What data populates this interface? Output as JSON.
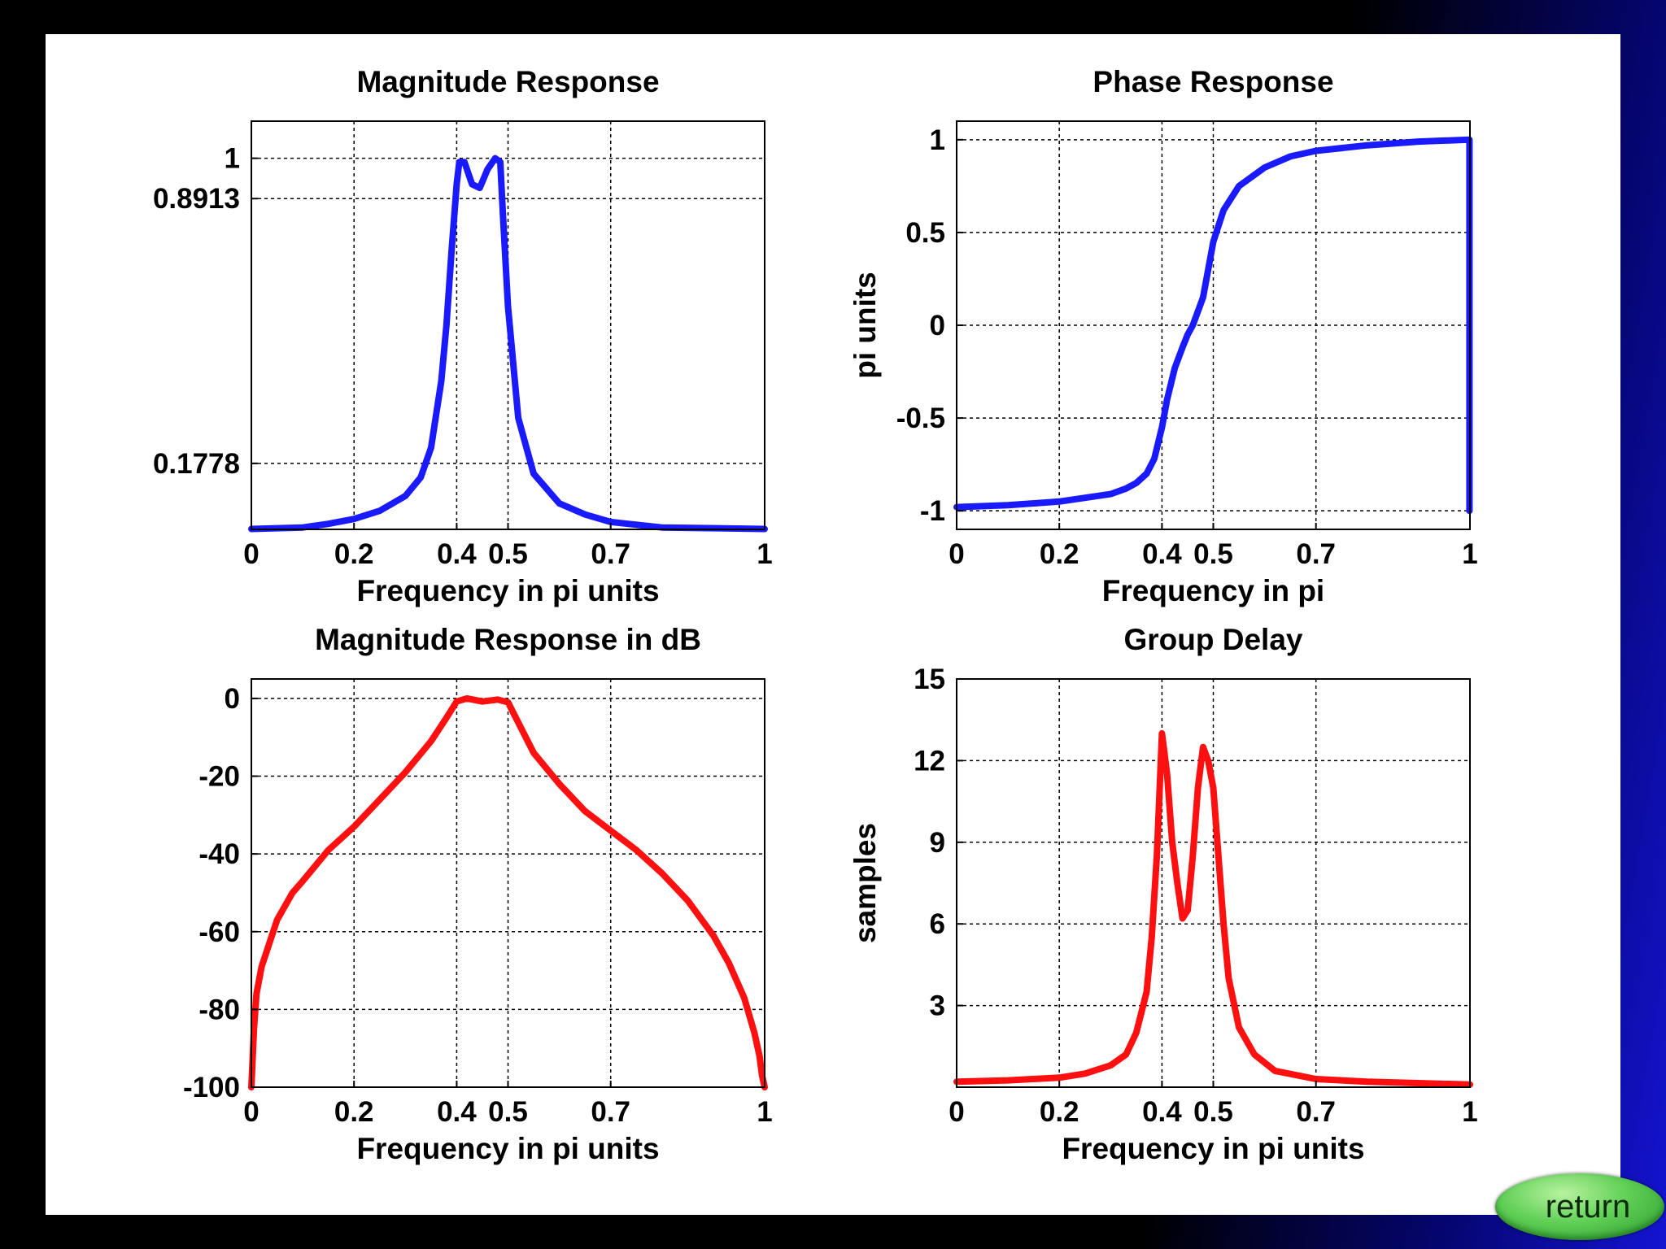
{
  "chart_data": [
    {
      "id": "magnitude",
      "type": "line",
      "title": "Magnitude Response",
      "xlabel": "Frequency in pi units",
      "ylabel": "",
      "xlim": [
        0,
        1
      ],
      "ylim": [
        0,
        1.1
      ],
      "xticks": [
        0,
        0.2,
        0.4,
        0.5,
        0.7,
        1
      ],
      "xtick_labels": [
        "0",
        "0.2",
        "0.4",
        "0.5",
        "0.7",
        "1"
      ],
      "yticks": [
        0.1778,
        0.8913,
        1
      ],
      "ytick_labels": [
        "0.1778",
        "0.8913",
        "1"
      ],
      "grid": true,
      "color": "#1a1aff",
      "series": [
        {
          "x": [
            0,
            0.1,
            0.15,
            0.2,
            0.25,
            0.3,
            0.33,
            0.35,
            0.37,
            0.38,
            0.39,
            0.4,
            0.405,
            0.415,
            0.43,
            0.445,
            0.46,
            0.475,
            0.485,
            0.49,
            0.5,
            0.52,
            0.55,
            0.6,
            0.65,
            0.7,
            0.8,
            1
          ],
          "y": [
            0.001,
            0.005,
            0.015,
            0.028,
            0.05,
            0.09,
            0.14,
            0.22,
            0.4,
            0.55,
            0.75,
            0.93,
            0.99,
            0.99,
            0.93,
            0.92,
            0.97,
            1.0,
            0.99,
            0.85,
            0.6,
            0.3,
            0.15,
            0.07,
            0.04,
            0.02,
            0.005,
            0.001
          ]
        }
      ]
    },
    {
      "id": "phase",
      "type": "line",
      "title": "Phase Response",
      "xlabel": "Frequency in pi",
      "ylabel": "pi units",
      "xlim": [
        0,
        1
      ],
      "ylim": [
        -1.1,
        1.1
      ],
      "xticks": [
        0,
        0.2,
        0.4,
        0.5,
        0.7,
        1
      ],
      "xtick_labels": [
        "0",
        "0.2",
        "0.4",
        "0.5",
        "0.7",
        "1"
      ],
      "yticks": [
        -1,
        -0.5,
        0,
        0.5,
        1
      ],
      "ytick_labels": [
        "-1",
        "-0.5",
        "0",
        "0.5",
        "1"
      ],
      "grid": true,
      "color": "#1a1aff",
      "series": [
        {
          "x": [
            0,
            0.1,
            0.2,
            0.25,
            0.3,
            0.33,
            0.35,
            0.37,
            0.385,
            0.4,
            0.41,
            0.425,
            0.44,
            0.45,
            0.46,
            0.48,
            0.5,
            0.52,
            0.55,
            0.6,
            0.65,
            0.7,
            0.8,
            0.9,
            0.999,
            0.999
          ],
          "y": [
            -0.98,
            -0.97,
            -0.95,
            -0.93,
            -0.91,
            -0.88,
            -0.85,
            -0.8,
            -0.72,
            -0.55,
            -0.4,
            -0.23,
            -0.12,
            -0.05,
            0,
            0.15,
            0.45,
            0.62,
            0.75,
            0.85,
            0.91,
            0.94,
            0.97,
            0.99,
            1.0,
            -1.0
          ]
        }
      ]
    },
    {
      "id": "magnitude-db",
      "type": "line",
      "title": "Magnitude Response in dB",
      "xlabel": "Frequency in pi units",
      "ylabel": "",
      "xlim": [
        0,
        1
      ],
      "ylim": [
        -100,
        5
      ],
      "xticks": [
        0,
        0.2,
        0.4,
        0.5,
        0.7,
        1
      ],
      "xtick_labels": [
        "0",
        "0.2",
        "0.4",
        "0.5",
        "0.7",
        "1"
      ],
      "yticks": [
        -100,
        -80,
        -60,
        -40,
        -20,
        0
      ],
      "ytick_labels": [
        "-100",
        "-80",
        "-60",
        "-40",
        "-20",
        "0"
      ],
      "grid": true,
      "color": "#ff1010",
      "series": [
        {
          "x": [
            0,
            0.005,
            0.01,
            0.02,
            0.05,
            0.08,
            0.1,
            0.15,
            0.2,
            0.25,
            0.3,
            0.35,
            0.38,
            0.4,
            0.42,
            0.45,
            0.48,
            0.5,
            0.55,
            0.6,
            0.65,
            0.7,
            0.75,
            0.8,
            0.85,
            0.9,
            0.93,
            0.96,
            0.98,
            0.99,
            0.995,
            1
          ],
          "y": [
            -100,
            -85,
            -76,
            -69,
            -57,
            -50,
            -47,
            -39,
            -33,
            -26,
            -19,
            -11,
            -5,
            -0.8,
            0,
            -0.8,
            -0.3,
            -1,
            -14,
            -22,
            -29,
            -34,
            -39,
            -45,
            -52,
            -61,
            -68,
            -77,
            -86,
            -92,
            -97,
            -100
          ]
        }
      ]
    },
    {
      "id": "group-delay",
      "type": "line",
      "title": "Group Delay",
      "xlabel": "Frequency in pi units",
      "ylabel": "samples",
      "xlim": [
        0,
        1
      ],
      "ylim": [
        0,
        15
      ],
      "xticks": [
        0,
        0.2,
        0.4,
        0.5,
        0.7,
        1
      ],
      "xtick_labels": [
        "0",
        "0.2",
        "0.4",
        "0.5",
        "0.7",
        "1"
      ],
      "yticks": [
        3,
        6,
        9,
        12,
        15
      ],
      "ytick_labels": [
        "3",
        "6",
        "9",
        "12",
        "15"
      ],
      "grid": true,
      "color": "#ff1010",
      "series": [
        {
          "x": [
            0,
            0.1,
            0.2,
            0.25,
            0.3,
            0.33,
            0.35,
            0.37,
            0.38,
            0.39,
            0.4,
            0.41,
            0.42,
            0.43,
            0.44,
            0.45,
            0.46,
            0.47,
            0.48,
            0.49,
            0.5,
            0.51,
            0.52,
            0.53,
            0.55,
            0.58,
            0.62,
            0.7,
            0.8,
            1
          ],
          "y": [
            0.2,
            0.25,
            0.35,
            0.5,
            0.8,
            1.2,
            2.0,
            3.5,
            5.5,
            8.5,
            13.0,
            11.5,
            9.0,
            7.5,
            6.2,
            6.5,
            8.5,
            11.0,
            12.5,
            12.0,
            11.0,
            8.5,
            6.0,
            4.0,
            2.2,
            1.2,
            0.6,
            0.3,
            0.2,
            0.1
          ]
        }
      ]
    }
  ],
  "controls": {
    "return_label": "return"
  }
}
